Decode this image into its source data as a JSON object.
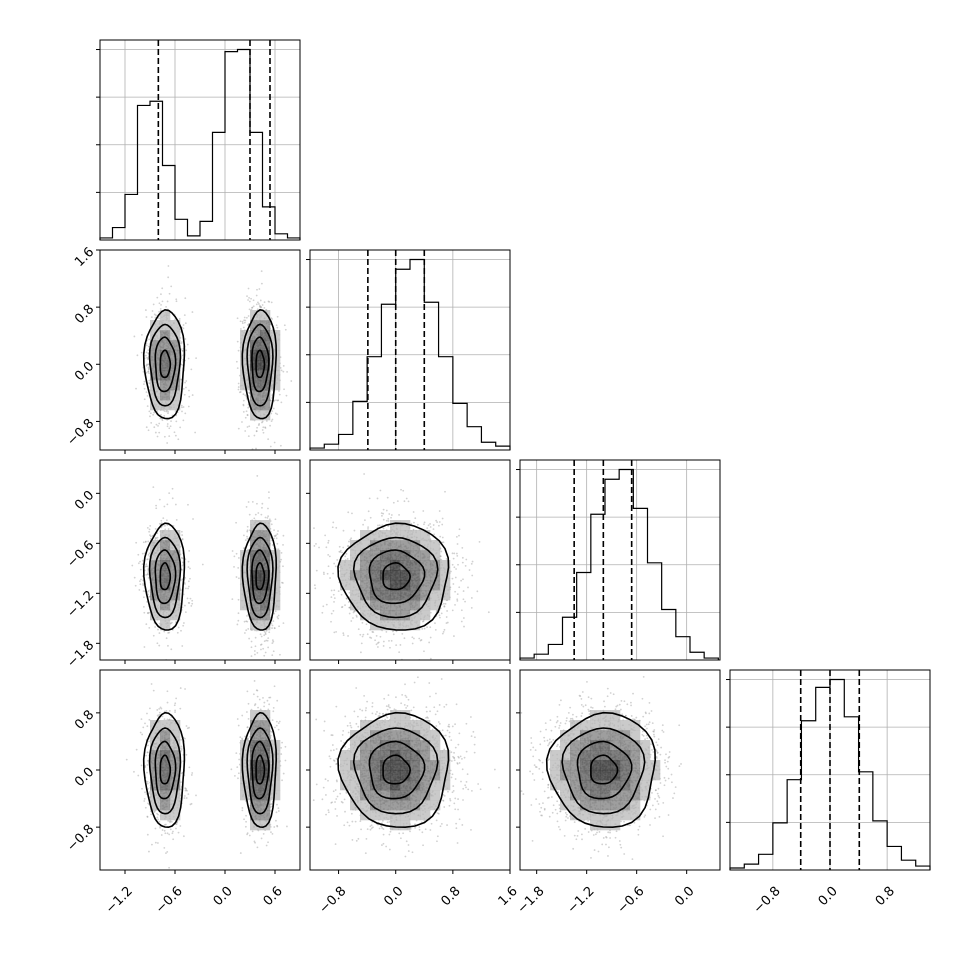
{
  "chart_data": {
    "type": "corner",
    "title": "",
    "grid": true,
    "parameters": [
      {
        "range": [
          -1.5,
          0.9
        ],
        "ticks": [
          "−1.2",
          "−0.6",
          "0.0",
          "0.6"
        ],
        "tick_values": [
          -1.2,
          -0.6,
          0.0,
          0.6
        ],
        "quantiles": [
          -0.8,
          0.3,
          0.54
        ],
        "histogram": {
          "counts": [
            1,
            6,
            22,
            65,
            67,
            36,
            10,
            2,
            9,
            52,
            91,
            92,
            52,
            16,
            3,
            1
          ],
          "bin_edges": [
            -1.5,
            -1.35,
            -1.2,
            -1.05,
            -0.9,
            -0.75,
            -0.6,
            -0.45,
            -0.3,
            -0.15,
            0.0,
            0.15,
            0.3,
            0.45,
            0.6,
            0.75,
            0.9
          ]
        },
        "modes": [
          {
            "mean": -0.72,
            "sd": 0.12,
            "weight": 0.4
          },
          {
            "mean": 0.42,
            "sd": 0.1,
            "weight": 0.6
          }
        ]
      },
      {
        "range": [
          -1.2,
          1.6
        ],
        "ticks": [
          "−0.8",
          "0.0",
          "0.8",
          "1.6"
        ],
        "tick_values": [
          -0.8,
          0.0,
          0.8,
          1.6
        ],
        "quantiles": [
          -0.39,
          0.0,
          0.4
        ],
        "histogram": {
          "counts": [
            1,
            3,
            8,
            25,
            48,
            75,
            93,
            98,
            76,
            48,
            24,
            12,
            4,
            2
          ],
          "bin_edges": [
            -1.2,
            -1.0,
            -0.8,
            -0.6,
            -0.4,
            -0.2,
            0.0,
            0.2,
            0.4,
            0.6,
            0.8,
            1.0,
            1.2,
            1.4,
            1.6
          ]
        },
        "modes": [
          {
            "mean": 0.0,
            "sd": 0.38,
            "weight": 1.0
          }
        ]
      },
      {
        "range": [
          -2.0,
          0.4
        ],
        "ticks": [
          "−1.8",
          "−1.2",
          "−0.6",
          "0.0"
        ],
        "tick_values": [
          -1.8,
          -1.2,
          -0.6,
          0.0
        ],
        "quantiles": [
          -1.35,
          -1.0,
          -0.66
        ],
        "histogram": {
          "counts": [
            1,
            3,
            8,
            22,
            45,
            75,
            93,
            98,
            78,
            50,
            26,
            12,
            4,
            1
          ],
          "bin_edges": [
            -2.0,
            -1.83,
            -1.66,
            -1.49,
            -1.32,
            -1.15,
            -0.98,
            -0.81,
            -0.64,
            -0.47,
            -0.3,
            -0.13,
            0.04,
            0.21,
            0.38
          ]
        },
        "modes": [
          {
            "mean": -1.0,
            "sd": 0.32,
            "weight": 1.0
          }
        ]
      },
      {
        "range": [
          -1.4,
          1.4
        ],
        "ticks": [
          "−0.8",
          "0.0",
          "0.8"
        ],
        "tick_values": [
          -0.8,
          0.0,
          0.8
        ],
        "quantiles": [
          -0.41,
          0.0,
          0.41
        ],
        "histogram": {
          "counts": [
            1,
            3,
            8,
            24,
            46,
            76,
            93,
            97,
            78,
            50,
            25,
            12,
            5,
            2
          ],
          "bin_edges": [
            -1.4,
            -1.2,
            -1.0,
            -0.8,
            -0.6,
            -0.4,
            -0.2,
            0.0,
            0.2,
            0.4,
            0.6,
            0.8,
            1.0,
            1.2,
            1.4
          ]
        },
        "modes": [
          {
            "mean": 0.0,
            "sd": 0.4,
            "weight": 1.0
          }
        ]
      }
    ],
    "contour_levels_sigma": [
      0.5,
      1.0,
      1.5,
      2.0
    ]
  }
}
